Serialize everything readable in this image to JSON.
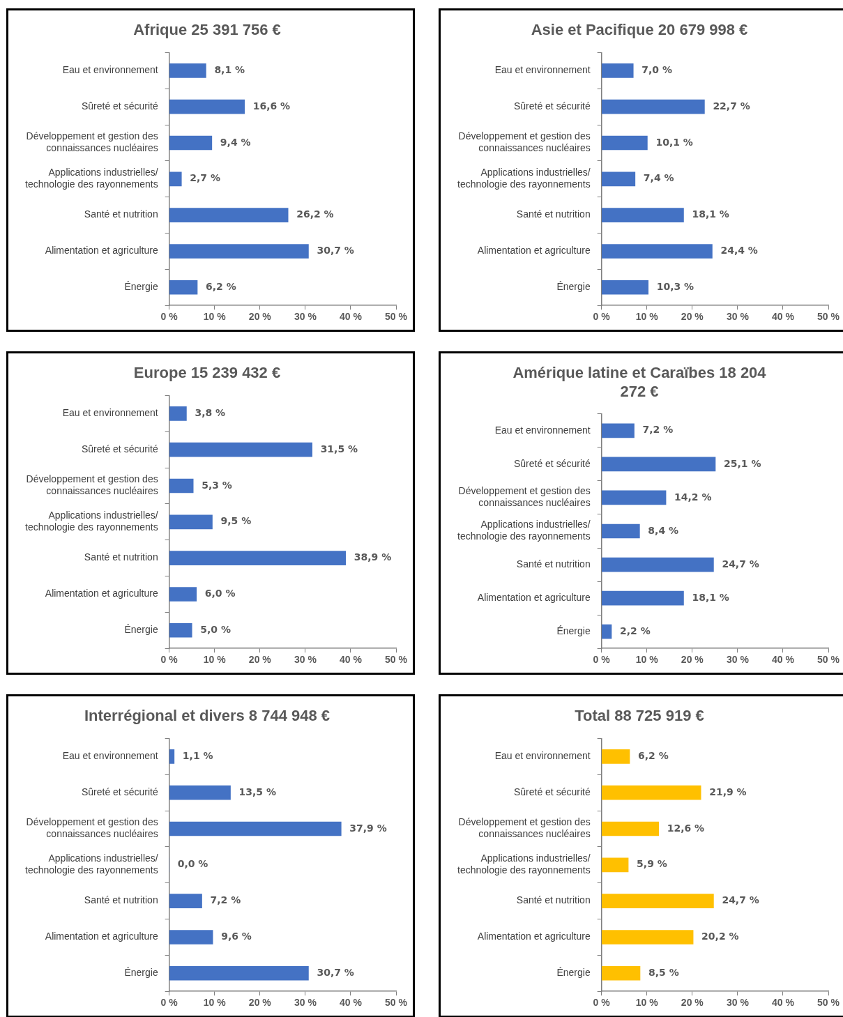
{
  "chart_data": [
    {
      "type": "bar",
      "orientation": "horizontal",
      "title": "Afrique 25 391 756 €",
      "categories": [
        "Eau et environnement",
        "Sûreté et sécurité",
        "Développement et gestion des connaissances nucléaires",
        "Applications industrielles/ technologie des rayonnements",
        "Santé et nutrition",
        "Alimentation et agriculture",
        "Énergie"
      ],
      "values": [
        8.1,
        16.6,
        9.4,
        2.7,
        26.2,
        30.7,
        6.2
      ],
      "value_labels": [
        "8,1 %",
        "16,6 %",
        "9,4 %",
        "2,7 %",
        "26,2 %",
        "30,7 %",
        "6,2 %"
      ],
      "color": "#4472c4",
      "xlim": [
        0,
        50
      ],
      "xticks": [
        {
          "value": 0,
          "label": "0 %"
        },
        {
          "value": 10,
          "label": "10 %"
        },
        {
          "value": 20,
          "label": "20 %"
        },
        {
          "value": 30,
          "label": "30 %"
        },
        {
          "value": 40,
          "label": "40 %"
        },
        {
          "value": 50,
          "label": "50 %"
        }
      ]
    },
    {
      "type": "bar",
      "orientation": "horizontal",
      "title": "Asie et Pacifique 20 679 998 €",
      "categories": [
        "Eau et environnement",
        "Sûreté et sécurité",
        "Développement et gestion des connaissances nucléaires",
        "Applications industrielles/ technologie des rayonnements",
        "Santé et nutrition",
        "Alimentation et agriculture",
        "Énergie"
      ],
      "values": [
        7.0,
        22.7,
        10.1,
        7.4,
        18.1,
        24.4,
        10.3
      ],
      "value_labels": [
        "7,0 %",
        "22,7 %",
        "10,1 %",
        "7,4 %",
        "18,1 %",
        "24,4 %",
        "10,3 %"
      ],
      "color": "#4472c4",
      "xlim": [
        0,
        50
      ],
      "xticks": [
        {
          "value": 0,
          "label": "0 %"
        },
        {
          "value": 10,
          "label": "10 %"
        },
        {
          "value": 20,
          "label": "20 %"
        },
        {
          "value": 30,
          "label": "30 %"
        },
        {
          "value": 40,
          "label": "40 %"
        },
        {
          "value": 50,
          "label": "50 %"
        }
      ]
    },
    {
      "type": "bar",
      "orientation": "horizontal",
      "title": "Europe 15 239 432 €",
      "categories": [
        "Eau et environnement",
        "Sûreté et sécurité",
        "Développement et gestion des connaissances nucléaires",
        "Applications industrielles/ technologie des rayonnements",
        "Santé et nutrition",
        "Alimentation et agriculture",
        "Énergie"
      ],
      "values": [
        3.8,
        31.5,
        5.3,
        9.5,
        38.9,
        6.0,
        5.0
      ],
      "value_labels": [
        "3,8 %",
        "31,5 %",
        "5,3 %",
        "9,5 %",
        "38,9 %",
        "6,0 %",
        "5,0 %"
      ],
      "color": "#4472c4",
      "xlim": [
        0,
        50
      ],
      "xticks": [
        {
          "value": 0,
          "label": "0 %"
        },
        {
          "value": 10,
          "label": "10 %"
        },
        {
          "value": 20,
          "label": "20 %"
        },
        {
          "value": 30,
          "label": "30 %"
        },
        {
          "value": 40,
          "label": "40 %"
        },
        {
          "value": 50,
          "label": "50 %"
        }
      ]
    },
    {
      "type": "bar",
      "orientation": "horizontal",
      "title": "Amérique latine et Caraïbes 18 204 272 €",
      "categories": [
        "Eau et environnement",
        "Sûreté et sécurité",
        "Développement et gestion des connaissances nucléaires",
        "Applications industrielles/ technologie des rayonnements",
        "Santé et nutrition",
        "Alimentation et agriculture",
        "Énergie"
      ],
      "values": [
        7.2,
        25.1,
        14.2,
        8.4,
        24.7,
        18.1,
        2.2
      ],
      "value_labels": [
        "7,2 %",
        "25,1 %",
        "14,2 %",
        "8,4 %",
        "24,7 %",
        "18,1 %",
        "2,2 %"
      ],
      "color": "#4472c4",
      "xlim": [
        0,
        50
      ],
      "xticks": [
        {
          "value": 0,
          "label": "0 %"
        },
        {
          "value": 10,
          "label": "10 %"
        },
        {
          "value": 20,
          "label": "20 %"
        },
        {
          "value": 30,
          "label": "30 %"
        },
        {
          "value": 40,
          "label": "40 %"
        },
        {
          "value": 50,
          "label": "50 %"
        }
      ]
    },
    {
      "type": "bar",
      "orientation": "horizontal",
      "title": "Interrégional et divers 8 744 948 €",
      "categories": [
        "Eau et environnement",
        "Sûreté et sécurité",
        "Développement et gestion des connaissances nucléaires",
        "Applications industrielles/ technologie des rayonnements",
        "Santé et nutrition",
        "Alimentation et agriculture",
        "Énergie"
      ],
      "values": [
        1.1,
        13.5,
        37.9,
        0.0,
        7.2,
        9.6,
        30.7
      ],
      "value_labels": [
        "1,1 %",
        "13,5 %",
        "37,9 %",
        "0,0 %",
        "7,2 %",
        "9,6 %",
        "30,7 %"
      ],
      "color": "#4472c4",
      "xlim": [
        0,
        50
      ],
      "xticks": [
        {
          "value": 0,
          "label": "0 %"
        },
        {
          "value": 10,
          "label": "10 %"
        },
        {
          "value": 20,
          "label": "20 %"
        },
        {
          "value": 30,
          "label": "30 %"
        },
        {
          "value": 40,
          "label": "40 %"
        },
        {
          "value": 50,
          "label": "50 %"
        }
      ]
    },
    {
      "type": "bar",
      "orientation": "horizontal",
      "title": "Total 88 725 919 €",
      "categories": [
        "Eau et environnement",
        "Sûreté et sécurité",
        "Développement et gestion des connaissances nucléaires",
        "Applications industrielles/ technologie des rayonnements",
        "Santé et nutrition",
        "Alimentation et agriculture",
        "Énergie"
      ],
      "values": [
        6.2,
        21.9,
        12.6,
        5.9,
        24.7,
        20.2,
        8.5
      ],
      "value_labels": [
        "6,2 %",
        "21,9 %",
        "12,6 %",
        "5,9 %",
        "24,7 %",
        "20,2 %",
        "8,5 %"
      ],
      "color": "#ffc000",
      "xlim": [
        0,
        50
      ],
      "xticks": [
        {
          "value": 0,
          "label": "0 %"
        },
        {
          "value": 10,
          "label": "10 %"
        },
        {
          "value": 20,
          "label": "20 %"
        },
        {
          "value": 30,
          "label": "30 %"
        },
        {
          "value": 40,
          "label": "40 %"
        },
        {
          "value": 50,
          "label": "50 %"
        }
      ]
    }
  ]
}
